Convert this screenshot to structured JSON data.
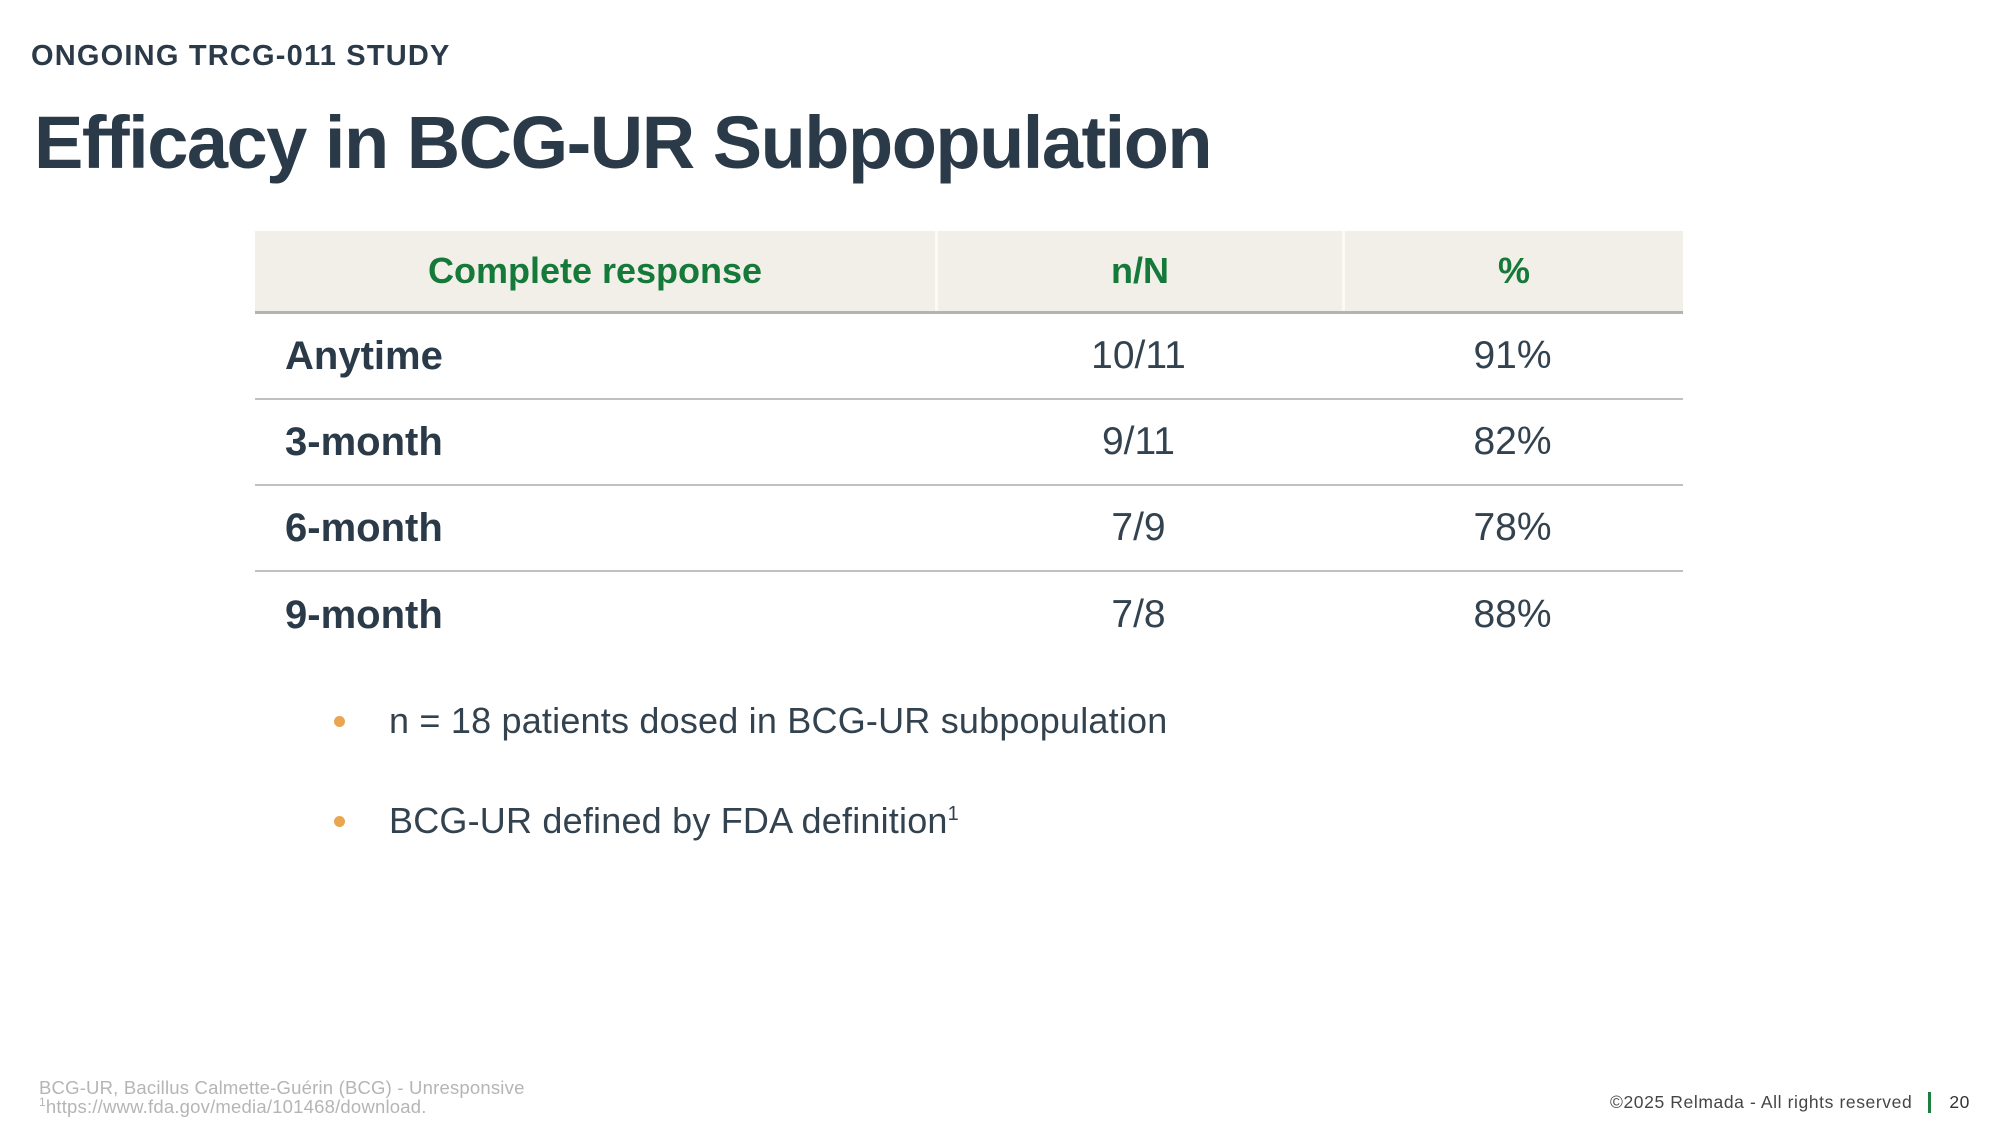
{
  "slide": {
    "kicker": "ONGOING TRCG-011 STUDY",
    "title": "Efficacy in BCG-UR Subpopulation"
  },
  "table": {
    "columns": [
      "Complete response",
      "n/N",
      "%"
    ],
    "rows": [
      {
        "label": "Anytime",
        "nN": "10/11",
        "pct": "91%"
      },
      {
        "label": "3-month",
        "nN": "9/11",
        "pct": "82%"
      },
      {
        "label": "6-month",
        "nN": "7/9",
        "pct": "78%"
      },
      {
        "label": "9-month",
        "nN": "7/8",
        "pct": "88%"
      }
    ]
  },
  "bullets": [
    {
      "text": "n = 18 patients dosed in BCG-UR subpopulation",
      "superscript": ""
    },
    {
      "text": "BCG-UR defined by FDA definition",
      "superscript": "1"
    }
  ],
  "footnotes": {
    "line1": "BCG-UR, Bacillus Calmette-Guérin (BCG) - Unresponsive",
    "line2_superscript": "1",
    "line2": "https://www.fda.gov/media/101468/download."
  },
  "footer": {
    "copyright": "©2025 Relmada - All rights reserved",
    "page_number": "20"
  },
  "colors": {
    "accent_green": "#15793A",
    "dark_slate": "#2B3A48",
    "table_header_bg": "#F2EFE9",
    "bullet_orange": "#E9A64F",
    "footer_divider_green": "#1E7E3E"
  },
  "chart_data": {
    "type": "table",
    "title": "Efficacy in BCG-UR Subpopulation",
    "columns": [
      "Complete response",
      "n/N",
      "%"
    ],
    "rows": [
      [
        "Anytime",
        "10/11",
        "91%"
      ],
      [
        "3-month",
        "9/11",
        "82%"
      ],
      [
        "6-month",
        "7/9",
        "78%"
      ],
      [
        "9-month",
        "7/8",
        "88%"
      ]
    ]
  }
}
